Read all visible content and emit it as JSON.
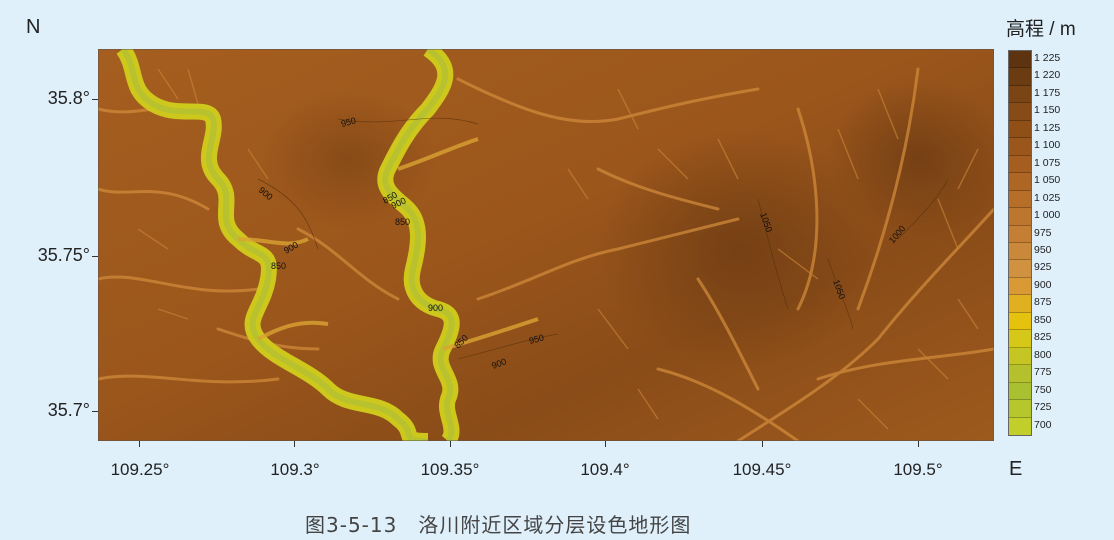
{
  "map": {
    "north_label": "N",
    "east_label": "E",
    "lat_ticks": [
      "35.8°",
      "35.75°",
      "35.7°"
    ],
    "lon_ticks": [
      "109.25°",
      "109.3°",
      "109.35°",
      "109.4°",
      "109.45°",
      "109.5°"
    ],
    "contour_labels": [
      "950",
      "900",
      "850",
      "900",
      "950",
      "900",
      "850",
      "900",
      "900",
      "850",
      "900",
      "950",
      "1050",
      "1000",
      "1050"
    ]
  },
  "legend": {
    "title": "高程 / m",
    "levels": [
      "1 225",
      "1 220",
      "1 175",
      "1 150",
      "1 125",
      "1 100",
      "1 075",
      "1 050",
      "1 025",
      "1 000",
      "975",
      "950",
      "925",
      "900",
      "875",
      "850",
      "825",
      "800",
      "775",
      "750",
      "725",
      "700"
    ],
    "colors": [
      "#5e3410",
      "#6b3b12",
      "#7a4415",
      "#864b17",
      "#914f18",
      "#9b561b",
      "#a55e1f",
      "#ae6624",
      "#b66e29",
      "#bd762e",
      "#c47f34",
      "#ca883a",
      "#d09140",
      "#d99a36",
      "#e0b020",
      "#e5c20e",
      "#d6c818",
      "#c5c623",
      "#b4c12c",
      "#a9c031",
      "#b5c72c",
      "#c2cf2b"
    ]
  },
  "caption": "图3-5-13　洛川附近区域分层设色地形图"
}
